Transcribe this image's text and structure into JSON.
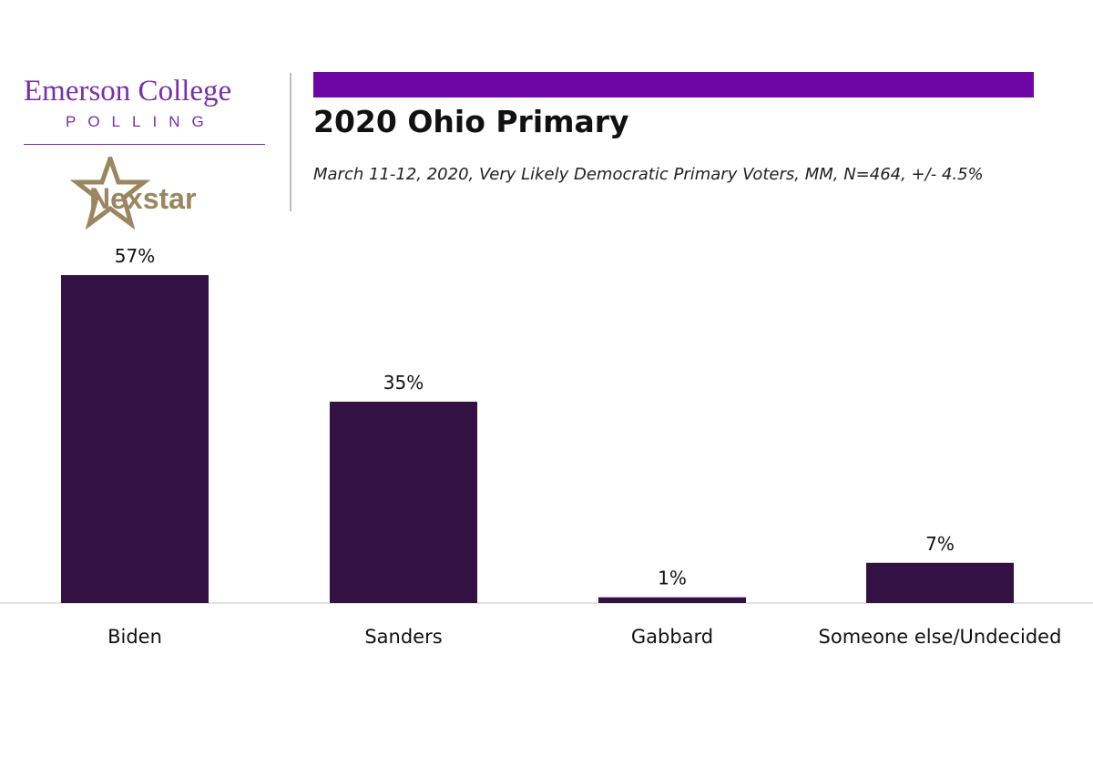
{
  "branding": {
    "college_line": "Emerson College",
    "polling_line": "POLLING",
    "partner": "Nexstar",
    "partner_icon": "star-icon"
  },
  "header": {
    "title": "2020 Ohio Primary",
    "subtitle": "March 11-12, 2020, Very Likely Democratic Primary Voters, MM,  N=464, +/- 4.5%"
  },
  "colors": {
    "accent": "#6e06a3",
    "bar": "#331142",
    "brand_purple": "#7a2fa8",
    "partner_gold": "#9a8660"
  },
  "chart_data": {
    "type": "bar",
    "categories": [
      "Biden",
      "Sanders",
      "Gabbard",
      "Someone else/Undecided"
    ],
    "values": [
      57,
      35,
      1,
      7
    ],
    "value_labels": [
      "57%",
      "35%",
      "1%",
      "7%"
    ],
    "title": "2020 Ohio Primary",
    "xlabel": "",
    "ylabel": "",
    "ylim": [
      0,
      57
    ],
    "grid": false,
    "legend": "none"
  }
}
